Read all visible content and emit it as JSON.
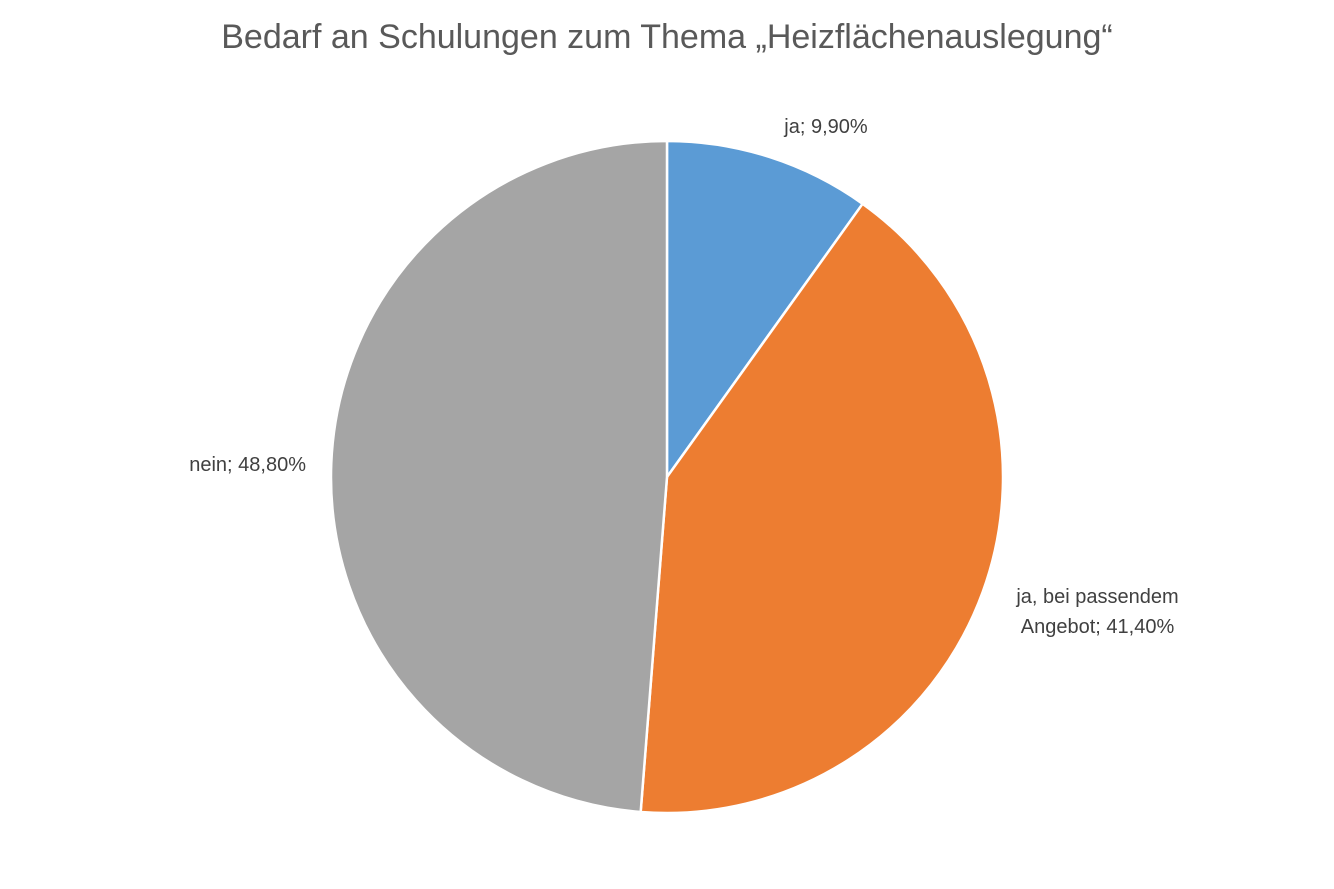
{
  "chart_data": {
    "type": "pie",
    "title": "Bedarf an Schulungen zum Thema „Heizflächenauslegung“",
    "values": [
      9.9,
      41.4,
      48.8
    ],
    "value_labels": [
      "ja; 9,90%",
      "ja, bei passendem Angebot; 41,40%",
      "nein; 48,80%"
    ],
    "colors": [
      "#5b9bd5",
      "#ed7d31",
      "#a5a5a5"
    ]
  }
}
